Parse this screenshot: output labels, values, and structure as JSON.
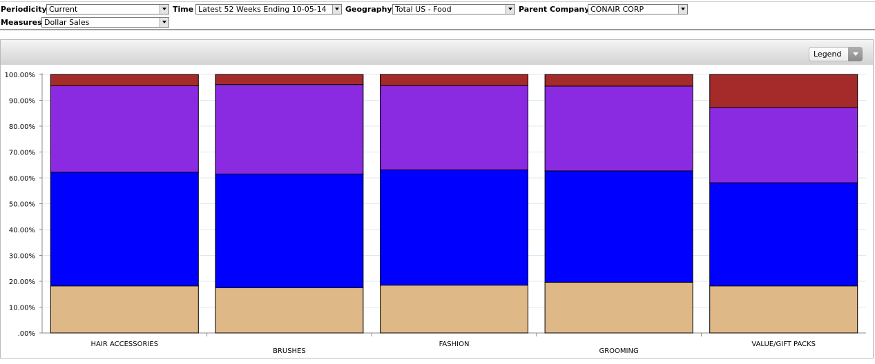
{
  "filters": {
    "periodicity": {
      "label": "Periodicity",
      "value": "Current"
    },
    "time": {
      "label": "Time",
      "value": "Latest 52 Weeks Ending 10-05-14"
    },
    "geography": {
      "label": "Geography",
      "value": "Total US - Food"
    },
    "parent_company": {
      "label": "Parent Company",
      "value": "CONAIR CORP"
    },
    "measures": {
      "label": "Measures",
      "value": "Dollar Sales"
    }
  },
  "legend_button": {
    "label": "Legend"
  },
  "chart_data": {
    "type": "bar",
    "stacked": true,
    "categories": [
      "HAIR ACCESSORIES",
      "BRUSHES",
      "FASHION",
      "GROOMING",
      "VALUE/GIFT PACKS"
    ],
    "series": [
      {
        "color": "#deb887",
        "values": [
          18.2,
          17.5,
          18.5,
          19.6,
          18.2
        ]
      },
      {
        "color": "#0000ff",
        "values": [
          44.0,
          44.0,
          44.6,
          43.1,
          39.9
        ]
      },
      {
        "color": "#8a2be2",
        "values": [
          33.4,
          34.6,
          32.6,
          32.8,
          29.1
        ]
      },
      {
        "color": "#a52a2a",
        "values": [
          4.4,
          3.9,
          4.3,
          4.5,
          12.8
        ]
      }
    ],
    "ylim": [
      0,
      100
    ],
    "yticks": [
      "100.00%",
      "90.00%",
      "80.00%",
      "70.00%",
      "60.00%",
      "50.00%",
      "40.00%",
      "30.00%",
      "20.00%",
      "10.00%",
      ".00%"
    ],
    "grid": true,
    "title": "",
    "xlabel": "",
    "ylabel": ""
  }
}
